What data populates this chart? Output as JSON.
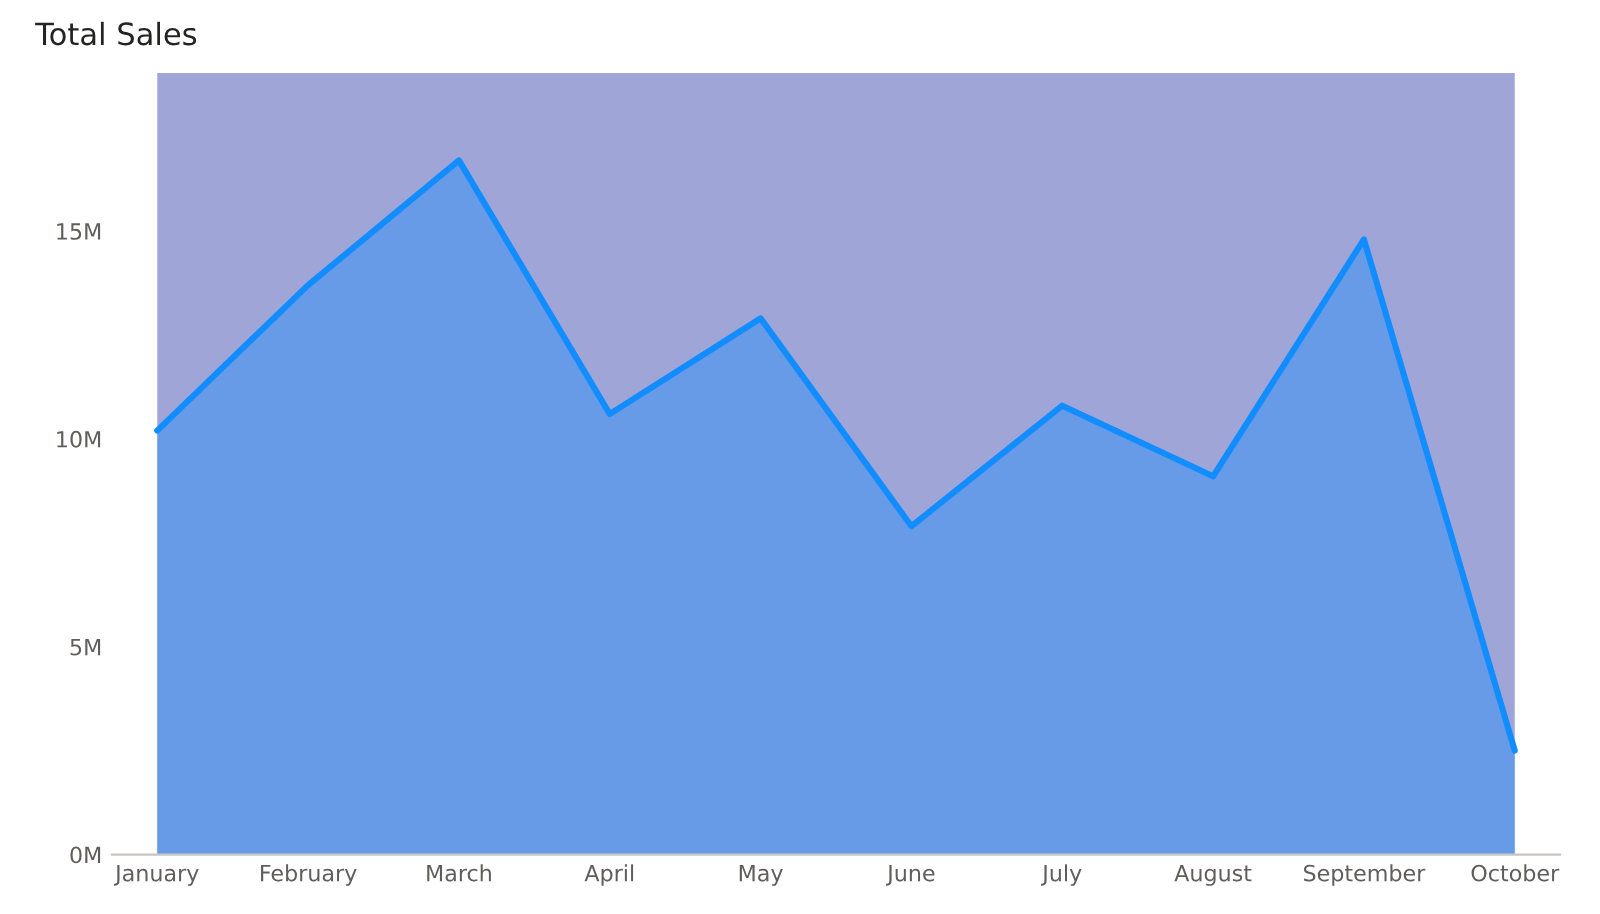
{
  "chart_data": {
    "type": "area",
    "title": "Total Sales",
    "categories": [
      "January",
      "February",
      "March",
      "April",
      "May",
      "June",
      "July",
      "August",
      "September",
      "October"
    ],
    "series": [
      {
        "color": "#118dff",
        "values": [
          10.2,
          13.7,
          16.7,
          10.6,
          12.9,
          7.9,
          10.8,
          9.1,
          14.8,
          2.5
        ]
      }
    ],
    "ylim": [
      0,
      18.8
    ],
    "yticks": [
      {
        "value": 0,
        "label": "0M"
      },
      {
        "value": 5,
        "label": "5M"
      },
      {
        "value": 10,
        "label": "10M"
      },
      {
        "value": 15,
        "label": "15M"
      }
    ],
    "bands": [
      {
        "axis": "y",
        "from": 0,
        "to": 18.8,
        "color": "#a0a5d8"
      }
    ],
    "grid": false,
    "legend": false
  }
}
